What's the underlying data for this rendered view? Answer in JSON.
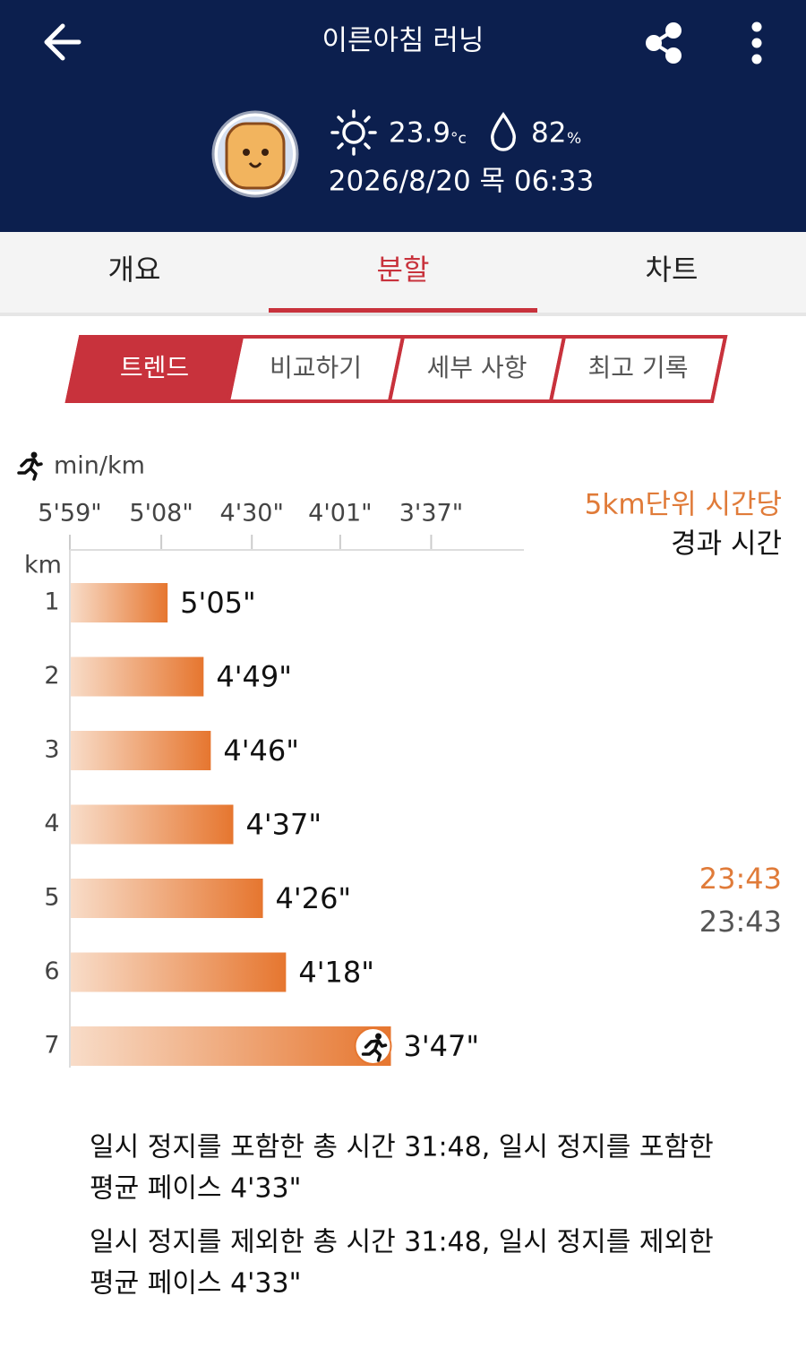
{
  "header": {
    "title": "이른아침 러닝",
    "temperature": "23.9",
    "temperature_unit": "°c",
    "humidity": "82",
    "humidity_unit": "%",
    "datetime": "2026/8/20 목 06:33"
  },
  "tabs": {
    "items": [
      "개요",
      "분할",
      "차트"
    ],
    "active": 1
  },
  "subtabs": {
    "items": [
      "트렌드",
      "비교하기",
      "세부 사항",
      "최고 기록"
    ],
    "active": 0
  },
  "chart_data": {
    "type": "bar",
    "orientation": "horizontal",
    "scale": "reciprocal",
    "unit_label": "min/km",
    "category_label": "km",
    "categories": [
      "1",
      "2",
      "3",
      "4",
      "5",
      "6",
      "7"
    ],
    "values": [
      305,
      289,
      286,
      277,
      266,
      258,
      227
    ],
    "value_labels": [
      "5'05\"",
      "4'49\"",
      "4'46\"",
      "4'37\"",
      "4'26\"",
      "4'18\"",
      "3'47\""
    ],
    "xlim": [
      359,
      197
    ],
    "xticks": [
      {
        "value": 359,
        "label": "5'59\""
      },
      {
        "value": 308,
        "label": "5'08\""
      },
      {
        "value": 270,
        "label": "4'30\""
      },
      {
        "value": 241,
        "label": "4'01\""
      },
      {
        "value": 217,
        "label": "3'37\""
      }
    ],
    "color_start": "#f8dcc8",
    "color_end": "#e6762f",
    "split_header": [
      "5km단위 시간당",
      "경과 시간"
    ],
    "splits": [
      {
        "category": "5",
        "lap": "23:43",
        "elapsed": "23:43"
      }
    ]
  },
  "summary": [
    [
      "일시 정지를 포함한 총 시간 31:48, 일시 정지를 포함한",
      "평균 페이스 4'33\""
    ],
    [
      "일시 정지를 제외한 총 시간 31:48, 일시 정지를 제외한",
      "평균 페이스 4'33\""
    ]
  ]
}
